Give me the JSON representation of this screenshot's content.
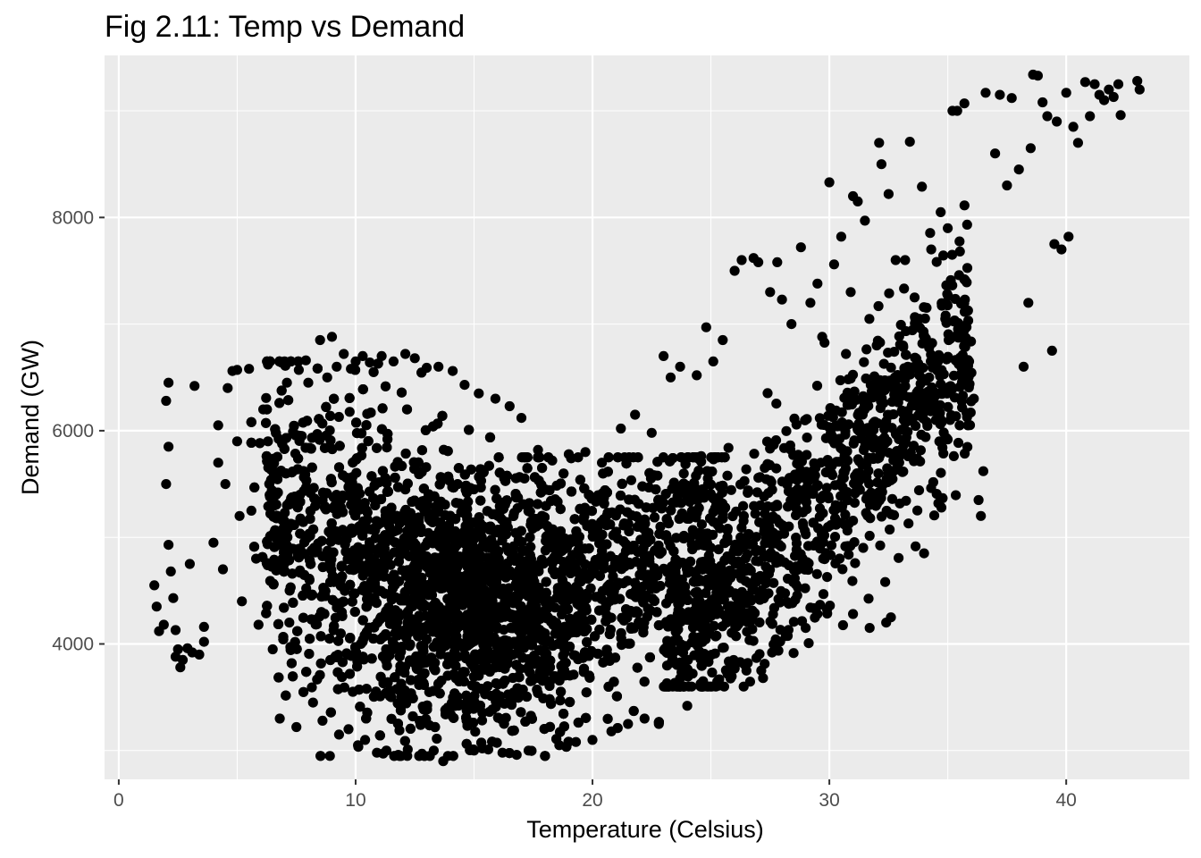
{
  "chart_data": {
    "type": "scatter",
    "title": "Fig 2.11: Temp vs Demand",
    "xlabel": "Temperature (Celsius)",
    "ylabel": "Demand (GW)",
    "xlim": [
      -0.6,
      45.2
    ],
    "ylim": [
      2730,
      9520
    ],
    "x_ticks": [
      0,
      10,
      20,
      30,
      40
    ],
    "x_tick_labels": [
      "0",
      "10",
      "20",
      "30",
      "40"
    ],
    "x_minor_ticks": [
      5,
      15,
      25,
      35
    ],
    "y_ticks": [
      4000,
      6000,
      8000
    ],
    "y_tick_labels": [
      "4000",
      "6000",
      "8000"
    ],
    "y_minor_ticks": [
      3000,
      5000,
      7000,
      9000
    ],
    "grid": true,
    "legend": "none",
    "colors": {
      "panel_background": "#ebebeb",
      "grid": "#ffffff",
      "point": "#000000",
      "tick_label": "#4d4d4d",
      "tick_mark": "#333333"
    },
    "series": [
      {
        "points": [
          [
            1.5,
            4550
          ],
          [
            1.6,
            4350
          ],
          [
            1.7,
            4120
          ],
          [
            1.9,
            4180
          ],
          [
            2.0,
            6280
          ],
          [
            2.1,
            6450
          ],
          [
            2.0,
            5500
          ],
          [
            2.1,
            5850
          ],
          [
            2.1,
            4930
          ],
          [
            2.2,
            4680
          ],
          [
            2.3,
            4430
          ],
          [
            2.4,
            4130
          ],
          [
            2.4,
            3880
          ],
          [
            2.5,
            3950
          ],
          [
            2.6,
            3780
          ],
          [
            2.7,
            3850
          ],
          [
            2.9,
            3960
          ],
          [
            3.0,
            4750
          ],
          [
            3.1,
            3920
          ],
          [
            3.2,
            6420
          ],
          [
            3.4,
            3900
          ],
          [
            3.6,
            4020
          ],
          [
            3.6,
            4160
          ],
          [
            4.0,
            4950
          ],
          [
            4.2,
            5700
          ],
          [
            4.2,
            6050
          ],
          [
            4.4,
            4700
          ],
          [
            4.5,
            5500
          ],
          [
            4.6,
            6400
          ],
          [
            4.8,
            6560
          ],
          [
            5.0,
            6570
          ],
          [
            5.0,
            5900
          ],
          [
            5.1,
            5200
          ],
          [
            5.2,
            4400
          ],
          [
            5.5,
            6580
          ],
          [
            5.6,
            5250
          ],
          [
            5.8,
            4800
          ],
          [
            5.9,
            4180
          ],
          [
            6.1,
            6200
          ],
          [
            6.3,
            5900
          ],
          [
            6.3,
            6620
          ],
          [
            6.5,
            3950
          ],
          [
            6.8,
            3300
          ],
          [
            7.0,
            6650
          ],
          [
            7.1,
            6450
          ],
          [
            7.2,
            4200
          ],
          [
            7.5,
            3220
          ],
          [
            7.6,
            6570
          ],
          [
            7.9,
            6660
          ],
          [
            8.0,
            6450
          ],
          [
            8.2,
            3450
          ],
          [
            8.5,
            6850
          ],
          [
            8.6,
            3280
          ],
          [
            8.8,
            6500
          ],
          [
            9.0,
            6880
          ],
          [
            9.2,
            6600
          ],
          [
            9.3,
            3150
          ],
          [
            9.5,
            6720
          ],
          [
            9.7,
            3200
          ],
          [
            9.8,
            6580
          ],
          [
            10.0,
            6650
          ],
          [
            10.1,
            3050
          ],
          [
            10.3,
            6700
          ],
          [
            10.4,
            3100
          ],
          [
            10.6,
            6640
          ],
          [
            10.9,
            2980
          ],
          [
            11.1,
            6700
          ],
          [
            11.3,
            3000
          ],
          [
            11.6,
            6650
          ],
          [
            11.8,
            2960
          ],
          [
            12.1,
            6720
          ],
          [
            12.2,
            3010
          ],
          [
            12.5,
            6680
          ],
          [
            12.8,
            2970
          ],
          [
            13.0,
            6590
          ],
          [
            13.3,
            3000
          ],
          [
            13.5,
            6600
          ],
          [
            13.7,
            2900
          ],
          [
            13.9,
            2950
          ],
          [
            14.1,
            6560
          ],
          [
            14.6,
            6430
          ],
          [
            15.0,
            3000
          ],
          [
            15.2,
            6350
          ],
          [
            15.6,
            3010
          ],
          [
            15.9,
            6300
          ],
          [
            16.2,
            2980
          ],
          [
            16.5,
            6230
          ],
          [
            16.8,
            2960
          ],
          [
            17.0,
            6120
          ],
          [
            17.3,
            3000
          ],
          [
            17.7,
            5820
          ],
          [
            18.0,
            2950
          ],
          [
            18.3,
            5720
          ],
          [
            18.6,
            3050
          ],
          [
            19.0,
            5780
          ],
          [
            19.3,
            3080
          ],
          [
            19.7,
            5800
          ],
          [
            20.0,
            3100
          ],
          [
            20.4,
            5700
          ],
          [
            20.8,
            3180
          ],
          [
            21.2,
            6020
          ],
          [
            21.5,
            3250
          ],
          [
            21.8,
            6150
          ],
          [
            22.2,
            3300
          ],
          [
            22.5,
            5980
          ],
          [
            22.8,
            3250
          ],
          [
            23.0,
            6700
          ],
          [
            23.3,
            6500
          ],
          [
            23.7,
            6600
          ],
          [
            24.0,
            3420
          ],
          [
            24.4,
            6520
          ],
          [
            24.8,
            6970
          ],
          [
            25.1,
            6650
          ],
          [
            25.5,
            6850
          ],
          [
            25.7,
            3720
          ],
          [
            26.0,
            7500
          ],
          [
            26.3,
            7600
          ],
          [
            26.5,
            3750
          ],
          [
            26.8,
            7620
          ],
          [
            27.0,
            7580
          ],
          [
            27.2,
            3680
          ],
          [
            27.5,
            7300
          ],
          [
            27.8,
            7580
          ],
          [
            28.0,
            7230
          ],
          [
            28.4,
            7000
          ],
          [
            28.8,
            7720
          ],
          [
            29.0,
            4150
          ],
          [
            29.2,
            7200
          ],
          [
            29.5,
            7380
          ],
          [
            29.7,
            6880
          ],
          [
            30.0,
            8330
          ],
          [
            30.2,
            7560
          ],
          [
            30.5,
            7820
          ],
          [
            30.7,
            6720
          ],
          [
            30.9,
            7300
          ],
          [
            31.0,
            8200
          ],
          [
            31.2,
            8150
          ],
          [
            31.5,
            7970
          ],
          [
            31.7,
            4150
          ],
          [
            32.0,
            6800
          ],
          [
            32.1,
            8700
          ],
          [
            32.2,
            8500
          ],
          [
            32.5,
            8220
          ],
          [
            32.4,
            4200
          ],
          [
            32.6,
            4250
          ],
          [
            32.8,
            7600
          ],
          [
            33.2,
            7600
          ],
          [
            33.4,
            8710
          ],
          [
            33.6,
            7250
          ],
          [
            33.8,
            7050
          ],
          [
            34.0,
            4850
          ],
          [
            34.3,
            7700
          ],
          [
            34.7,
            8050
          ],
          [
            35.0,
            7900
          ],
          [
            35.2,
            9000
          ],
          [
            35.4,
            9000
          ],
          [
            35.5,
            6050
          ],
          [
            35.7,
            9070
          ],
          [
            35.9,
            6650
          ],
          [
            36.1,
            6300
          ],
          [
            36.3,
            5350
          ],
          [
            36.4,
            5200
          ],
          [
            36.5,
            5620
          ],
          [
            36.6,
            9170
          ],
          [
            37.0,
            8600
          ],
          [
            37.2,
            9150
          ],
          [
            37.5,
            8300
          ],
          [
            37.7,
            9120
          ],
          [
            38.0,
            8450
          ],
          [
            38.2,
            6600
          ],
          [
            38.4,
            7200
          ],
          [
            38.5,
            8650
          ],
          [
            38.6,
            9340
          ],
          [
            38.8,
            9330
          ],
          [
            39.0,
            9080
          ],
          [
            39.2,
            8950
          ],
          [
            39.4,
            6750
          ],
          [
            39.5,
            7750
          ],
          [
            39.6,
            8900
          ],
          [
            39.8,
            7700
          ],
          [
            40.0,
            9170
          ],
          [
            40.1,
            7820
          ],
          [
            40.3,
            8850
          ],
          [
            40.5,
            8700
          ],
          [
            40.8,
            9270
          ],
          [
            41.0,
            8950
          ],
          [
            41.2,
            9250
          ],
          [
            41.4,
            9150
          ],
          [
            41.6,
            9100
          ],
          [
            41.8,
            9200
          ],
          [
            42.0,
            9130
          ],
          [
            42.2,
            9250
          ],
          [
            42.3,
            8960
          ],
          [
            43.0,
            9280
          ],
          [
            43.1,
            9200
          ]
        ]
      }
    ]
  }
}
